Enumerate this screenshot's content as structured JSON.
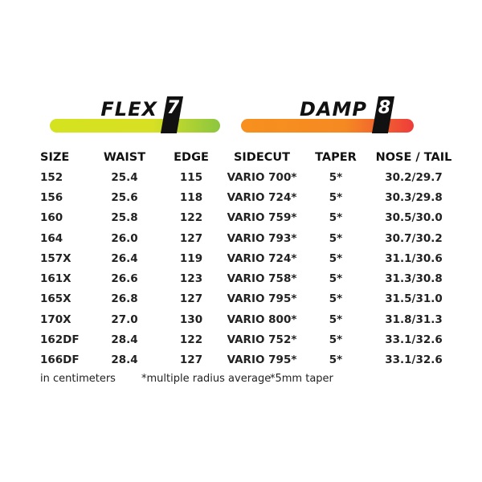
{
  "flex": {
    "label": "FLEX",
    "value": "7",
    "level": 0.7,
    "colors": [
      "#d4e21f",
      "#8cc63f"
    ]
  },
  "damp": {
    "label": "DAMP",
    "value": "8",
    "level": 0.8,
    "colors": [
      "#f7901e",
      "#ee3d3a"
    ]
  },
  "table": {
    "headers": [
      "SIZE",
      "WAIST",
      "EDGE",
      "SIDECUT",
      "TAPER",
      "NOSE / TAIL"
    ],
    "rows": [
      [
        "152",
        "25.4",
        "115",
        "VARIO 700*",
        "5*",
        "30.2/29.7"
      ],
      [
        "156",
        "25.6",
        "118",
        "VARIO 724*",
        "5*",
        "30.3/29.8"
      ],
      [
        "160",
        "25.8",
        "122",
        "VARIO 759*",
        "5*",
        "30.5/30.0"
      ],
      [
        "164",
        "26.0",
        "127",
        "VARIO 793*",
        "5*",
        "30.7/30.2"
      ],
      [
        "157X",
        "26.4",
        "119",
        "VARIO 724*",
        "5*",
        "31.1/30.6"
      ],
      [
        "161X",
        "26.6",
        "123",
        "VARIO 758*",
        "5*",
        "31.3/30.8"
      ],
      [
        "165X",
        "26.8",
        "127",
        "VARIO 795*",
        "5*",
        "31.5/31.0"
      ],
      [
        "170X",
        "27.0",
        "130",
        "VARIO 800*",
        "5*",
        "31.8/31.3"
      ],
      [
        "162DF",
        "28.4",
        "122",
        "VARIO 752*",
        "5*",
        "33.1/32.6"
      ],
      [
        "166DF",
        "28.4",
        "127",
        "VARIO 795*",
        "5*",
        "33.1/32.6"
      ]
    ]
  },
  "footnotes": {
    "units": "in centimeters",
    "sidecut": "*multiple radius average",
    "taper": "*5mm taper"
  }
}
